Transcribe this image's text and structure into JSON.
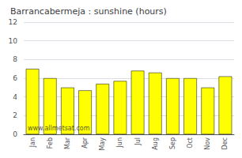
{
  "chart_data": {
    "type": "bar",
    "title": "Barrancabermeja : sunshine (hours)",
    "categories": [
      "Jan",
      "Feb",
      "Mar",
      "Apr",
      "May",
      "Jun",
      "Jul",
      "Aug",
      "Sep",
      "Oct",
      "Nov",
      "Dec"
    ],
    "values": [
      7.0,
      6.0,
      5.0,
      4.7,
      5.4,
      5.7,
      6.8,
      6.6,
      6.0,
      6.0,
      5.0,
      6.2
    ],
    "color": "#FFFF00",
    "ylim": [
      0,
      12
    ],
    "yticks": [
      0,
      2,
      4,
      6,
      8,
      10,
      12
    ],
    "grid": true,
    "annotation": "www.allmetsat.com"
  }
}
